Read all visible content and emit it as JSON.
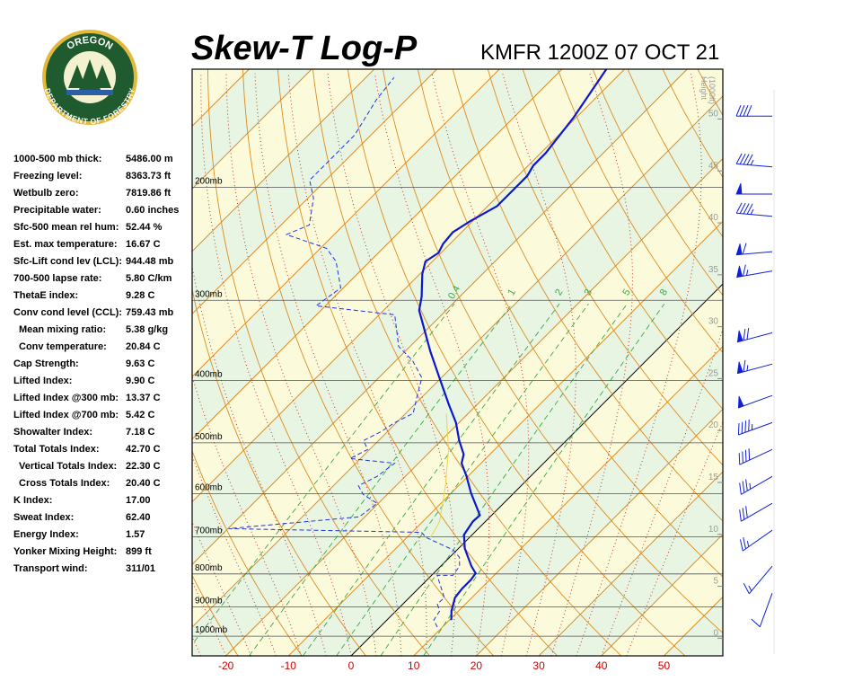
{
  "logo": {
    "top": "OREGON",
    "bottom": "DEPARTMENT OF FORESTRY"
  },
  "stats": [
    {
      "label": "1000-500 mb thick:",
      "value": "5486.00 m"
    },
    {
      "label": "Freezing level:",
      "value": "8363.73 ft"
    },
    {
      "label": "Wetbulb zero:",
      "value": "7819.86 ft"
    },
    {
      "label": "Precipitable water:",
      "value": "0.60 inches"
    },
    {
      "label": "Sfc-500 mean rel hum:",
      "value": "52.44 %"
    },
    {
      "label": "Est. max temperature:",
      "value": "16.67 C"
    },
    {
      "label": "Sfc-Lift cond lev (LCL):",
      "value": "944.48 mb"
    },
    {
      "label": "700-500 lapse rate:",
      "value": "5.80 C/km"
    },
    {
      "label": "ThetaE index:",
      "value": "9.28 C"
    },
    {
      "label": "Conv cond level (CCL):",
      "value": "759.43 mb"
    },
    {
      "label": "Mean mixing ratio:",
      "value": "5.38 g/kg",
      "indent": true
    },
    {
      "label": "Conv temperature:",
      "value": "20.84 C",
      "indent": true
    },
    {
      "label": "Cap Strength:",
      "value": "9.63 C"
    },
    {
      "label": "Lifted Index:",
      "value": "9.90 C"
    },
    {
      "label": "Lifted Index @300 mb:",
      "value": "13.37 C"
    },
    {
      "label": "Lifted Index @700 mb:",
      "value": "5.42 C"
    },
    {
      "label": "Showalter Index:",
      "value": "7.18 C"
    },
    {
      "label": "Total Totals Index:",
      "value": "42.70 C"
    },
    {
      "label": "Vertical Totals Index:",
      "value": "22.30 C",
      "indent": true
    },
    {
      "label": "Cross Totals Index:",
      "value": "20.40 C",
      "indent": true
    },
    {
      "label": "K Index:",
      "value": "17.00"
    },
    {
      "label": "Sweat Index:",
      "value": "62.40"
    },
    {
      "label": "Energy Index:",
      "value": "1.57"
    },
    {
      "label": "Yonker Mixing Height:",
      "value": "899 ft"
    },
    {
      "label": "Transport wind:",
      "value": "311/01"
    }
  ],
  "chart_data": {
    "type": "skew-t",
    "title": "Skew-T Log-P",
    "subtitle": "KMFR 1200Z 07 OCT 21",
    "xlim": [
      -25.4,
      59.4
    ],
    "xticks": [
      -20,
      -10,
      0,
      10,
      20,
      30,
      40,
      50
    ],
    "ylim": [
      1073,
      131
    ],
    "log_y": true,
    "yticks": [
      {
        "value": 200,
        "label": "200mb"
      },
      {
        "value": 300,
        "label": "300mb"
      },
      {
        "value": 400,
        "label": "400mb"
      },
      {
        "value": 500,
        "label": "500mb"
      },
      {
        "value": 600,
        "label": "600mb"
      },
      {
        "value": 700,
        "label": "700mb"
      },
      {
        "value": 800,
        "label": "800mb"
      },
      {
        "value": 900,
        "label": "900mb"
      },
      {
        "value": 1000,
        "label": "1000mb"
      }
    ],
    "y2label": [
      "Height",
      "(1000ft)"
    ],
    "y2lim": [
      -1.7,
      54.8
    ],
    "y2ticks": [
      0,
      5,
      10,
      15,
      20,
      25,
      30,
      35,
      40,
      45,
      50
    ],
    "mixing_ratios": [
      0.4,
      1,
      2,
      3,
      5,
      8
    ],
    "series": [
      {
        "color": "#0c18cf",
        "style": "solid",
        "pressure": [
          944,
          914,
          871,
          843,
          817,
          798,
          778,
          730,
          695,
          663,
          648,
          598,
          564,
          538,
          521,
          496,
          465,
          436,
          396,
          360,
          321,
          311,
          296,
          273,
          261,
          253,
          245,
          235,
          226,
          214,
          200,
          192,
          185,
          177,
          156,
          131
        ],
        "values": [
          10.3,
          8.9,
          7.3,
          7.0,
          7.0,
          6.7,
          4.9,
          1.0,
          -1.3,
          -2.0,
          -1.9,
          -6.9,
          -10.2,
          -13.1,
          -14.2,
          -17.1,
          -20.5,
          -24.5,
          -30.3,
          -36.0,
          -42.5,
          -44.3,
          -46.1,
          -49.6,
          -51.1,
          -50.4,
          -51.1,
          -51.4,
          -50.4,
          -48.5,
          -48.5,
          -48.5,
          -49.2,
          -49.2,
          -50.4,
          -52.9
        ]
      },
      {
        "color": "#2233dd",
        "style": "dashed",
        "pressure": [
          968,
          944,
          914,
          891,
          871,
          804,
          804,
          778,
          754,
          734,
          702,
          689,
          680,
          652,
          621,
          602,
          583,
          564,
          538,
          529,
          512,
          496,
          480,
          465,
          450,
          422,
          396,
          372,
          354,
          316,
          306,
          287,
          261,
          249,
          237,
          229,
          208,
          195,
          183,
          166,
          146,
          135
        ],
        "values": [
          9.2,
          7.5,
          7.0,
          5.5,
          5.6,
          0.9,
          3.4,
          3.0,
          1.6,
          -0.6,
          -6.9,
          -8.5,
          -39.9,
          -20.9,
          -20.2,
          -23.8,
          -26.0,
          -24.5,
          -23.8,
          -31.7,
          -30.3,
          -32.4,
          -31.0,
          -30.3,
          -28.8,
          -31.0,
          -33.1,
          -37.4,
          -41.8,
          -47.5,
          -61.5,
          -60.4,
          -65.4,
          -69.0,
          -77.6,
          -75.5,
          -79.1,
          -82.6,
          -82.6,
          -82.6,
          -84.8,
          -85.5
        ]
      },
      {
        "color": "#e6d84a",
        "style": "thin",
        "pressure": [
          702,
          663,
          583,
          512,
          450
        ],
        "values": [
          -6.2,
          -7.3,
          -12.1,
          -17.4,
          -23.5
        ]
      }
    ],
    "winds": {
      "color": "#1020d8",
      "pressure": [
        155,
        186,
        205,
        222,
        252,
        270,
        337,
        377,
        422,
        465,
        512,
        564,
        621,
        684,
        778,
        857
      ],
      "direction": [
        270,
        275,
        270,
        275,
        265,
        260,
        255,
        255,
        250,
        250,
        245,
        240,
        240,
        235,
        220,
        200
      ],
      "speed": [
        40,
        45,
        50,
        45,
        60,
        65,
        70,
        65,
        50,
        45,
        40,
        35,
        30,
        25,
        15,
        10
      ]
    }
  }
}
